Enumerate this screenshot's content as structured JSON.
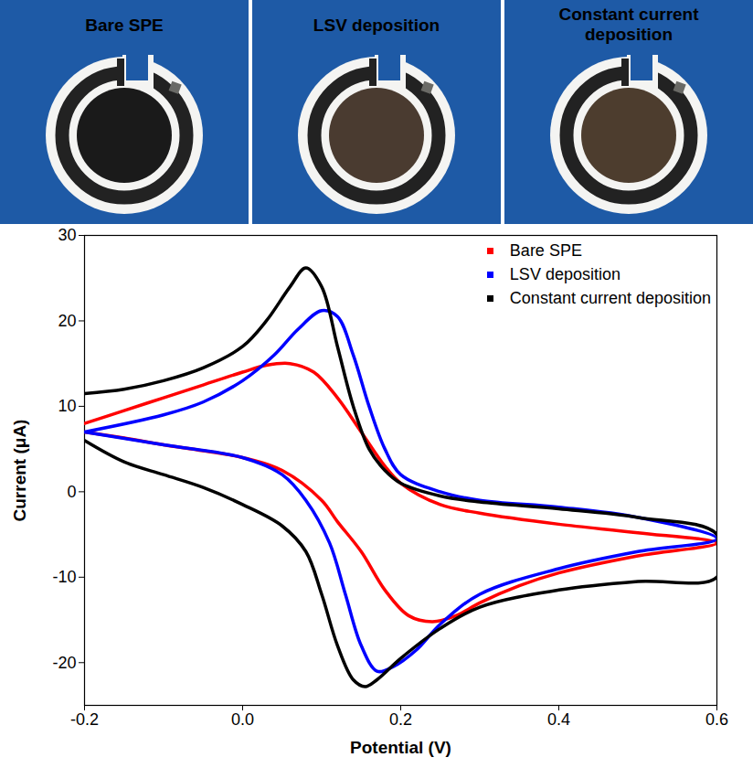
{
  "panels": [
    {
      "label": "Bare SPE",
      "color": "#1a1a1a"
    },
    {
      "label": "LSV deposition",
      "color": "#4a3b30"
    },
    {
      "label": "Constant current deposition",
      "color": "#4d3d2e"
    }
  ],
  "chart_data": {
    "type": "line",
    "x_label": "Potential (V)",
    "y_label": "Current (μA)",
    "xlim": [
      -0.2,
      0.6
    ],
    "xticks": [
      -0.2,
      {
        "value": 0,
        "label": "0.0"
      },
      0.2,
      0.4,
      0.6
    ],
    "ylim": [
      -25,
      30
    ],
    "yticks": [
      -20,
      -10,
      0,
      10,
      20,
      30
    ],
    "legend": "top-right",
    "series": [
      {
        "name": "Bare SPE",
        "color": "#ff0000",
        "x": [
          -0.2,
          -0.15,
          -0.1,
          -0.05,
          0,
          0.03,
          0.06,
          0.09,
          0.12,
          0.15,
          0.18,
          0.2,
          0.25,
          0.3,
          0.4,
          0.5,
          0.6,
          0.5,
          0.4,
          0.35,
          0.3,
          0.27,
          0.24,
          0.21,
          0.18,
          0.15,
          0.12,
          0.1,
          0.05,
          0,
          -0.05,
          -0.1,
          -0.15,
          -0.2
        ],
        "values": [
          8,
          9.5,
          11,
          12.5,
          14,
          14.8,
          15,
          14,
          11,
          7,
          3,
          1,
          -1.5,
          -2.5,
          -3.8,
          -4.8,
          -6,
          -7.5,
          -9.5,
          -11,
          -13,
          -14.5,
          -15.2,
          -14.5,
          -11.5,
          -7,
          -3.5,
          -1,
          2.5,
          4,
          4.8,
          5.5,
          6.3,
          7
        ]
      },
      {
        "name": "LSV deposition",
        "color": "#0000ff",
        "x": [
          -0.2,
          -0.1,
          -0.05,
          0,
          0.04,
          0.07,
          0.1,
          0.12,
          0.14,
          0.16,
          0.18,
          0.2,
          0.25,
          0.3,
          0.4,
          0.5,
          0.6,
          0.5,
          0.4,
          0.3,
          0.25,
          0.22,
          0.19,
          0.17,
          0.15,
          0.13,
          0.11,
          0.08,
          0.05,
          0,
          -0.1,
          -0.2
        ],
        "values": [
          7,
          9,
          10.5,
          13,
          16,
          19,
          21.2,
          20.5,
          16,
          10,
          5,
          2,
          0,
          -1,
          -1.8,
          -3,
          -5.5,
          -7,
          -9,
          -12,
          -15.5,
          -18.5,
          -20.5,
          -21,
          -18,
          -12,
          -6,
          -1,
          2,
          4,
          5.5,
          7
        ]
      },
      {
        "name": "Constant current deposition",
        "color": "#000000",
        "x": [
          -0.2,
          -0.15,
          -0.1,
          -0.05,
          0,
          0.03,
          0.06,
          0.08,
          0.1,
          0.12,
          0.14,
          0.16,
          0.18,
          0.2,
          0.25,
          0.3,
          0.4,
          0.5,
          0.6,
          0.6,
          0.5,
          0.4,
          0.3,
          0.25,
          0.2,
          0.17,
          0.155,
          0.14,
          0.12,
          0.1,
          0.08,
          0.05,
          0,
          -0.05,
          -0.1,
          -0.15,
          -0.2
        ],
        "values": [
          11.5,
          12,
          13,
          14.5,
          17,
          20,
          24,
          26.2,
          24,
          17,
          10,
          5,
          2.5,
          1,
          -0.5,
          -1.2,
          -2,
          -3,
          -5,
          -10,
          -10.5,
          -11.5,
          -13.5,
          -16,
          -19.5,
          -22,
          -22.8,
          -22,
          -18,
          -12,
          -7,
          -4,
          -1.5,
          0.5,
          2,
          3.5,
          6
        ]
      }
    ]
  }
}
